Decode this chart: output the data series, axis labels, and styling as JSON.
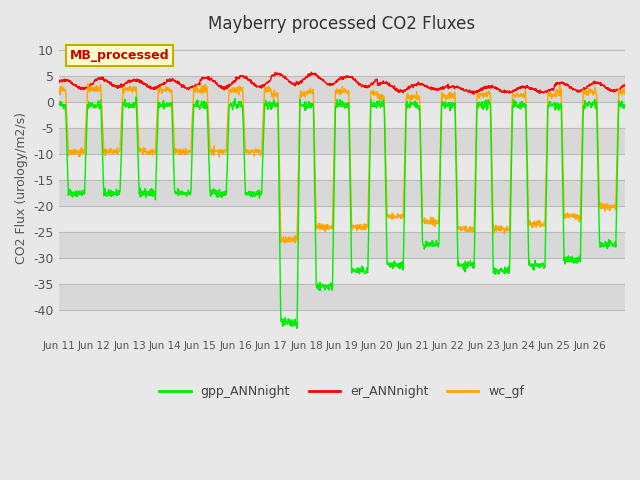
{
  "title": "Mayberry processed CO2 Fluxes",
  "ylabel": "CO2 Flux (urology/m2/s)",
  "ylim": [
    -45,
    12
  ],
  "yticks": [
    -40,
    -35,
    -30,
    -25,
    -20,
    -15,
    -10,
    -5,
    0,
    5,
    10
  ],
  "background_color": "#e8e8e8",
  "line_colors": {
    "gpp": "#00ee00",
    "er": "#ff0000",
    "wc": "#ffa500"
  },
  "x_labels": [
    "Jun 11",
    "Jun 12",
    "Jun 13",
    "Jun 14",
    "Jun 15",
    "Jun 16",
    "Jun 17",
    "Jun 18",
    "Jun 19",
    "Jun 20",
    "Jun 21",
    "Jun 22",
    "Jun 23",
    "Jun 24",
    "Jun 25",
    "Jun 26"
  ],
  "n_points_per_day": 96,
  "n_days": 16,
  "legend_label": "MB_processed",
  "legend_label_color": "#cc0000",
  "legend_box_face": "#ffffcc",
  "legend_box_edge": "#ccaa00"
}
